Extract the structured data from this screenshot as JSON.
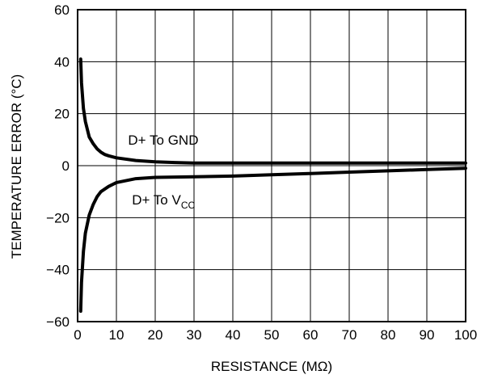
{
  "chart_data": {
    "type": "line",
    "xlabel": "RESISTANCE (MΩ)",
    "ylabel": "TEMPERATURE ERROR (°C)",
    "xlim": [
      0,
      100
    ],
    "ylim": [
      -60,
      60
    ],
    "x_ticks": [
      0,
      10,
      20,
      30,
      40,
      50,
      60,
      70,
      80,
      90,
      100
    ],
    "y_ticks": [
      60,
      40,
      20,
      0,
      -20,
      -40,
      -60
    ],
    "x_tick_labels": [
      "0",
      "10",
      "20",
      "30",
      "40",
      "50",
      "60",
      "70",
      "80",
      "90",
      "100"
    ],
    "y_tick_labels": [
      "60",
      "40",
      "20",
      "0",
      "−20",
      "−40",
      "−60"
    ],
    "grid": true,
    "series": [
      {
        "name": "D+ To GND",
        "x": [
          0.8,
          1,
          1.5,
          2,
          3,
          4,
          5,
          6,
          7,
          8,
          10,
          15,
          20,
          25,
          30,
          40,
          50,
          60,
          70,
          80,
          90,
          100
        ],
        "y": [
          41,
          32,
          22,
          17,
          11,
          8.5,
          6.5,
          5.2,
          4.3,
          3.8,
          3,
          2,
          1.5,
          1.2,
          1,
          1,
          1,
          1,
          1,
          1,
          1,
          1
        ]
      },
      {
        "name": "D+ To V",
        "name_subscript": "CC",
        "x": [
          0.8,
          1,
          1.5,
          2,
          3,
          4,
          5,
          6,
          8,
          10,
          15,
          20,
          30,
          40,
          50,
          60,
          70,
          80,
          90,
          100
        ],
        "y": [
          -56,
          -45,
          -33,
          -26,
          -19,
          -15,
          -12,
          -10,
          -8,
          -6.5,
          -5,
          -4.5,
          -4.3,
          -4,
          -3.5,
          -3,
          -2.5,
          -2,
          -1.5,
          -1
        ]
      }
    ],
    "annotations": [
      {
        "text": "D+ To GND",
        "x": 13,
        "y": 10
      },
      {
        "text": "D+ To V",
        "subscript": "CC",
        "x": 14,
        "y": -13
      }
    ]
  }
}
